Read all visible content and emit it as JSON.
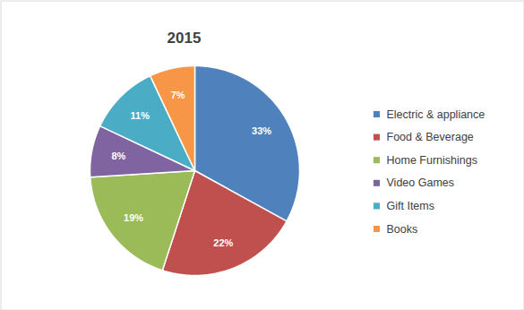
{
  "chart_data": {
    "type": "pie",
    "title": "2015",
    "categories": [
      "Electric & appliance",
      "Food & Beverage",
      "Home Furnishings",
      "Video Games",
      "Gift Items",
      "Books"
    ],
    "values": [
      33,
      22,
      19,
      8,
      11,
      7
    ],
    "value_labels": [
      "33%",
      "22%",
      "19%",
      "8%",
      "11%",
      "7%"
    ],
    "colors": [
      "#4f81bd",
      "#c0504d",
      "#9bbb59",
      "#8064a2",
      "#4bacc6",
      "#f79646"
    ],
    "data_labels": true,
    "legend": "right"
  }
}
